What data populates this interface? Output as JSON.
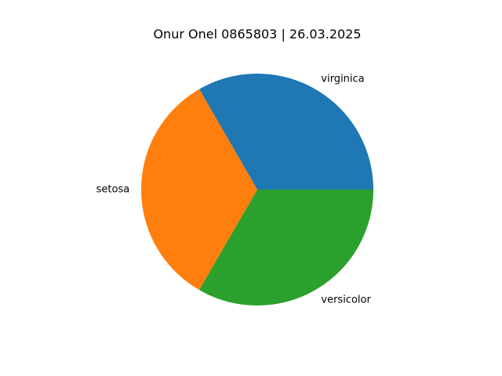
{
  "chart_data": {
    "type": "pie",
    "title": "Onur Onel 0865803 | 26.03.2025",
    "start_angle_deg": 0,
    "direction": "counterclockwise",
    "slices": [
      {
        "label": "virginica",
        "value": 50,
        "color": "#1f77b4"
      },
      {
        "label": "setosa",
        "value": 50,
        "color": "#ff7f0e"
      },
      {
        "label": "versicolor",
        "value": 50,
        "color": "#2ca02c"
      }
    ],
    "legend": "none",
    "grid": false
  }
}
